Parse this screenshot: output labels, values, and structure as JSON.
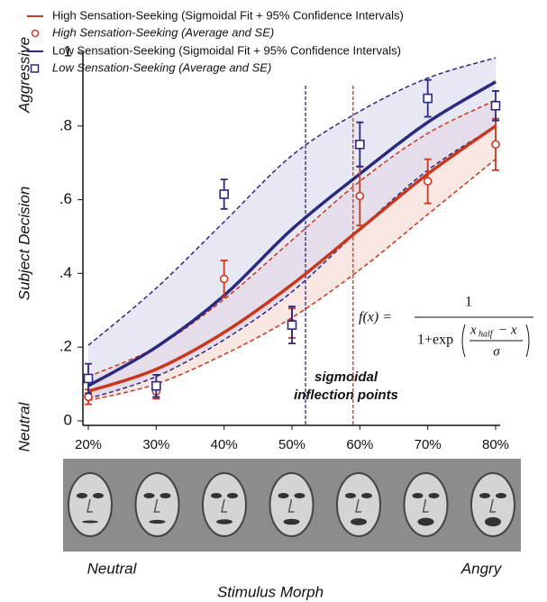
{
  "chart_data": {
    "type": "line",
    "y_label": "Subject Decision",
    "y_top_label": "Aggressive",
    "y_bottom_label": "Neutral",
    "x_label": "Stimulus Morph",
    "x_left_label": "Neutral",
    "x_right_label": "Angry",
    "annotation": [
      "sigmoidal",
      "inflection points"
    ],
    "formula": {
      "lhs": "f(x) =",
      "numerator": "1",
      "denominator": "1+exp",
      "inner_top": "x",
      "inner_sub": "half",
      "inner_minus": "− x",
      "inner_bottom": "σ"
    },
    "x": [
      20,
      30,
      40,
      50,
      60,
      70,
      80
    ],
    "xlim": [
      20,
      80
    ],
    "xticks": [
      {
        "value": 20,
        "label": "20%"
      },
      {
        "value": 30,
        "label": "30%"
      },
      {
        "value": 40,
        "label": "40%"
      },
      {
        "value": 50,
        "label": "50%"
      },
      {
        "value": 60,
        "label": "60%"
      },
      {
        "value": 70,
        "label": "70%"
      },
      {
        "value": 80,
        "label": "80%"
      }
    ],
    "ylim": [
      0,
      1
    ],
    "yticks": [
      0,
      {
        "value": 0.2,
        "label": ".2"
      },
      {
        "value": 0.4,
        "label": ".4"
      },
      {
        "value": 0.6,
        "label": ".6"
      },
      {
        "value": 0.8,
        "label": ".8"
      },
      1
    ],
    "series": [
      {
        "name": "High Sensation-Seeking (Sigmoidal Fit + 95% Confidence Intervals)",
        "color": "#c8381e",
        "band_color": "#f3d6d0",
        "marker": "circle",
        "values": [
          0.08,
          0.14,
          0.24,
          0.37,
          0.52,
          0.67,
          0.8
        ],
        "ci_upper": [
          0.12,
          0.2,
          0.33,
          0.49,
          0.65,
          0.78,
          0.87
        ],
        "ci_lower": [
          0.055,
          0.1,
          0.18,
          0.28,
          0.41,
          0.56,
          0.71
        ],
        "points_name": "High Sensation-Seeking (Average and SE)",
        "points": [
          0.065,
          0.08,
          0.385,
          0.265,
          0.61,
          0.65,
          0.75
        ],
        "errors": [
          0.02,
          0.02,
          0.05,
          0.04,
          0.08,
          0.06,
          0.07
        ],
        "inflection": 59
      },
      {
        "name": "Low Sensation-Seeking (Sigmoidal Fit + 95% Confidence Intervals)",
        "color": "#2b2a7e",
        "band_color": "#d9d9ef",
        "marker": "square",
        "values": [
          0.095,
          0.2,
          0.34,
          0.52,
          0.67,
          0.81,
          0.92
        ],
        "ci_upper": [
          0.205,
          0.36,
          0.54,
          0.72,
          0.84,
          0.93,
          0.985
        ],
        "ci_lower": [
          0.06,
          0.12,
          0.22,
          0.35,
          0.52,
          0.68,
          0.8
        ],
        "points_name": "Low Sensation-Seeking (Average and SE)",
        "points": [
          0.115,
          0.095,
          0.615,
          0.26,
          0.75,
          0.875,
          0.855
        ],
        "errors": [
          0.04,
          0.03,
          0.04,
          0.05,
          0.06,
          0.05,
          0.04
        ],
        "inflection": 52
      }
    ]
  }
}
